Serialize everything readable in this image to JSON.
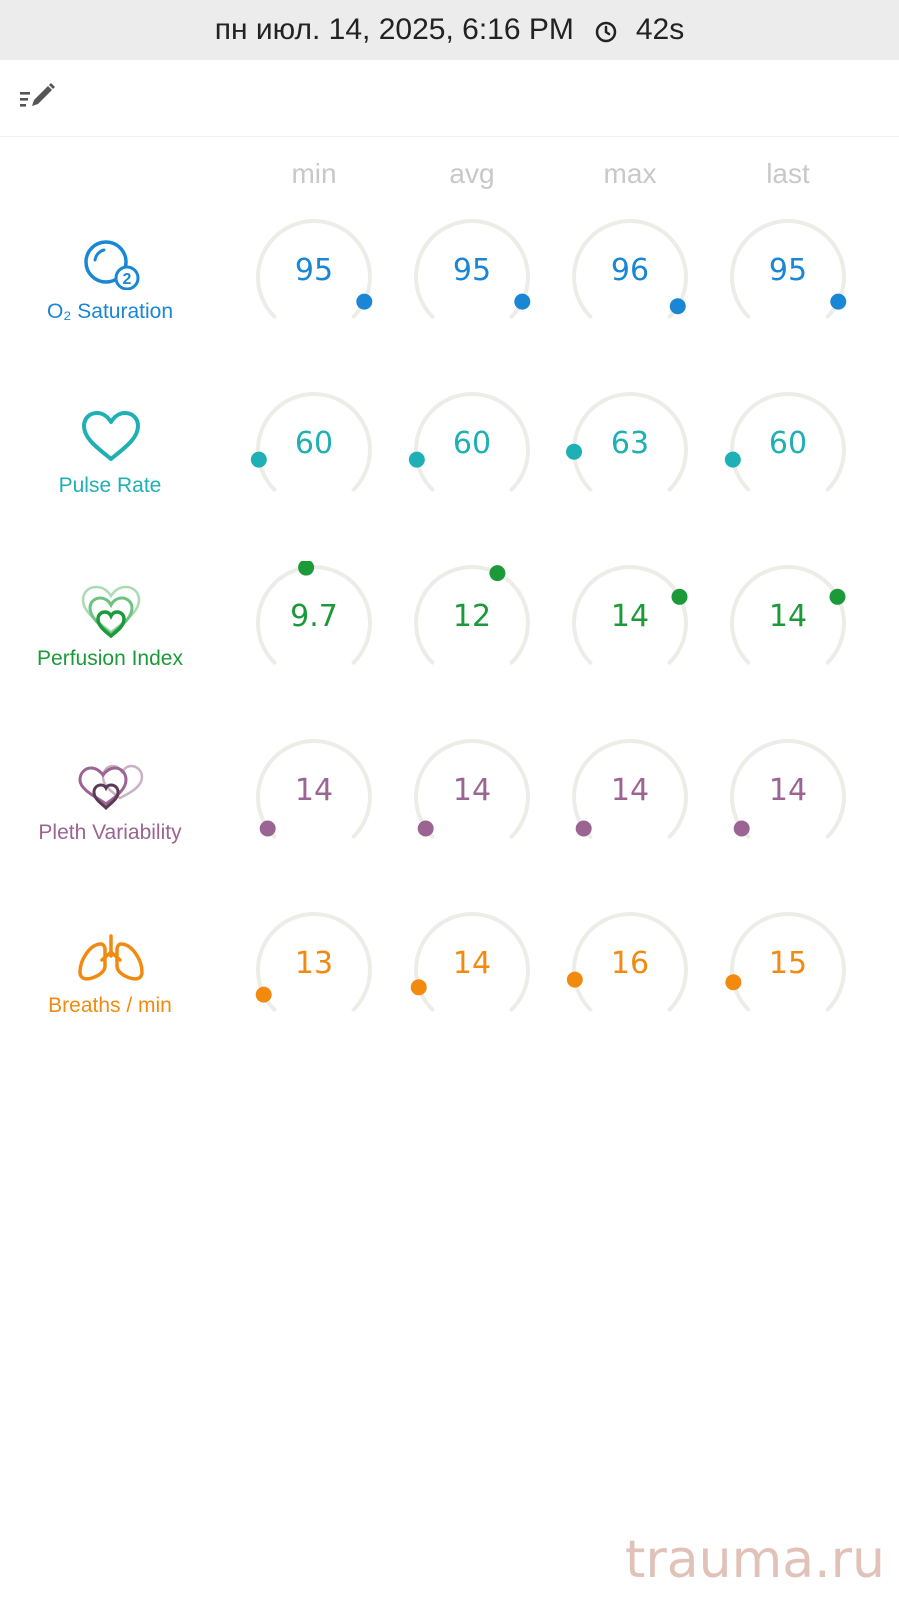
{
  "status_bar": {
    "datetime": "пн июл. 14, 2025, 6:16 PM",
    "duration": "42s",
    "clock_icon": "clock-icon"
  },
  "toolbar": {
    "edit_icon": "edit-list-icon"
  },
  "columns": [
    "min",
    "avg",
    "max",
    "last"
  ],
  "metrics": [
    {
      "label": "O₂ Saturation",
      "icon": "o2-saturation-icon",
      "color": "#1a86d6",
      "values": [
        "95",
        "95",
        "96",
        "95"
      ],
      "levels": [
        0.93,
        0.93,
        0.95,
        0.93
      ]
    },
    {
      "label": "Pulse Rate",
      "icon": "heart-icon",
      "color": "#1fb0b5",
      "values": [
        "60",
        "60",
        "63",
        "60"
      ],
      "levels": [
        0.13,
        0.13,
        0.16,
        0.13
      ]
    },
    {
      "label": "Perfusion Index",
      "icon": "perfusion-hearts-icon",
      "color": "#1c9a3a",
      "values": [
        "9.7",
        "12",
        "14",
        "14"
      ],
      "levels": [
        0.47,
        0.6,
        0.73,
        0.73
      ]
    },
    {
      "label": "Pleth Variability",
      "icon": "pleth-hearts-icon",
      "color": "#9b6492",
      "values": [
        "14",
        "14",
        "14",
        "14"
      ],
      "levels": [
        0.04,
        0.04,
        0.04,
        0.04
      ]
    },
    {
      "label": "Breaths / min",
      "icon": "lungs-icon",
      "color": "#f28a10",
      "values": [
        "13",
        "14",
        "16",
        "15"
      ],
      "levels": [
        0.07,
        0.1,
        0.13,
        0.12
      ]
    }
  ],
  "watermark": "trauma.ru"
}
